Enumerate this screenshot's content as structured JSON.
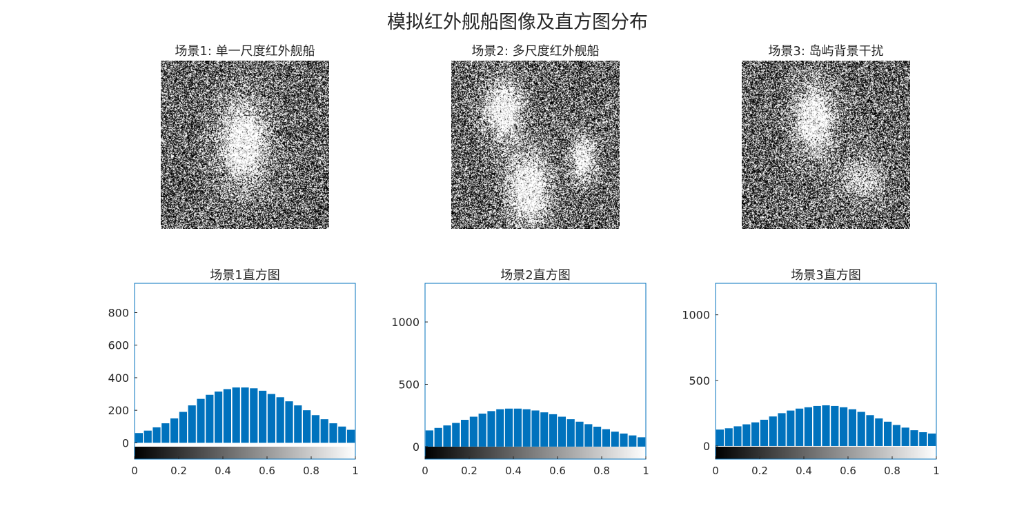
{
  "figure": {
    "title": "模拟红外舰船图像及直方图分布"
  },
  "images": [
    {
      "title": "场景1: 单一尺度红外舰船"
    },
    {
      "title": "场景2: 多尺度红外舰船"
    },
    {
      "title": "场景3: 岛屿背景干扰"
    }
  ],
  "colors": {
    "bar": "#0072BD",
    "axis": "#262626",
    "box": "#0072BD"
  },
  "chart_data": [
    {
      "type": "bar",
      "title": "场景1直方图",
      "xlabel": "",
      "ylabel": "",
      "xlim": [
        0,
        1
      ],
      "ylim": [
        -100,
        980
      ],
      "xticks": [
        0,
        0.2,
        0.4,
        0.6,
        0.8,
        1
      ],
      "xtick_labels": [
        "0",
        "0.2",
        "0.4",
        "0.6",
        "0.8",
        "1"
      ],
      "yticks": [
        0,
        200,
        400,
        600,
        800
      ],
      "ytick_labels": [
        "0",
        "200",
        "400",
        "600",
        "800"
      ],
      "colorbar": "gray",
      "x": [
        0.02,
        0.06,
        0.1,
        0.14,
        0.18,
        0.22,
        0.26,
        0.3,
        0.34,
        0.38,
        0.42,
        0.46,
        0.5,
        0.54,
        0.58,
        0.62,
        0.66,
        0.7,
        0.74,
        0.78,
        0.82,
        0.86,
        0.9,
        0.94,
        0.98
      ],
      "values": [
        60,
        75,
        95,
        120,
        150,
        190,
        230,
        270,
        295,
        315,
        330,
        340,
        340,
        335,
        320,
        300,
        280,
        255,
        230,
        200,
        170,
        145,
        120,
        100,
        80
      ]
    },
    {
      "type": "bar",
      "title": "场景2直方图",
      "xlabel": "",
      "ylabel": "",
      "xlim": [
        0,
        1
      ],
      "ylim": [
        -100,
        1310
      ],
      "xticks": [
        0,
        0.2,
        0.4,
        0.6,
        0.8,
        1
      ],
      "xtick_labels": [
        "0",
        "0.2",
        "0.4",
        "0.6",
        "0.8",
        "1"
      ],
      "yticks": [
        0,
        500,
        1000
      ],
      "ytick_labels": [
        "0",
        "500",
        "1000"
      ],
      "colorbar": "gray",
      "x": [
        0.02,
        0.06,
        0.1,
        0.14,
        0.18,
        0.22,
        0.26,
        0.3,
        0.34,
        0.38,
        0.42,
        0.46,
        0.5,
        0.54,
        0.58,
        0.62,
        0.66,
        0.7,
        0.74,
        0.78,
        0.82,
        0.86,
        0.9,
        0.94,
        0.98
      ],
      "values": [
        130,
        150,
        170,
        190,
        215,
        240,
        265,
        285,
        300,
        305,
        305,
        300,
        290,
        275,
        260,
        240,
        220,
        200,
        180,
        160,
        140,
        120,
        105,
        90,
        75
      ]
    },
    {
      "type": "bar",
      "title": "场景3直方图",
      "xlabel": "",
      "ylabel": "",
      "xlim": [
        0,
        1
      ],
      "ylim": [
        -100,
        1240
      ],
      "xticks": [
        0,
        0.2,
        0.4,
        0.6,
        0.8,
        1
      ],
      "xtick_labels": [
        "0",
        "0.2",
        "0.4",
        "0.6",
        "0.8",
        "1"
      ],
      "yticks": [
        0,
        500,
        1000
      ],
      "ytick_labels": [
        "0",
        "500",
        "1000"
      ],
      "colorbar": "gray",
      "x": [
        0.02,
        0.06,
        0.1,
        0.14,
        0.18,
        0.22,
        0.26,
        0.3,
        0.34,
        0.38,
        0.42,
        0.46,
        0.5,
        0.54,
        0.58,
        0.62,
        0.66,
        0.7,
        0.74,
        0.78,
        0.82,
        0.86,
        0.9,
        0.94,
        0.98
      ],
      "values": [
        125,
        135,
        150,
        165,
        180,
        200,
        225,
        250,
        270,
        285,
        295,
        305,
        310,
        305,
        295,
        280,
        260,
        235,
        210,
        185,
        160,
        140,
        120,
        105,
        95
      ]
    }
  ]
}
